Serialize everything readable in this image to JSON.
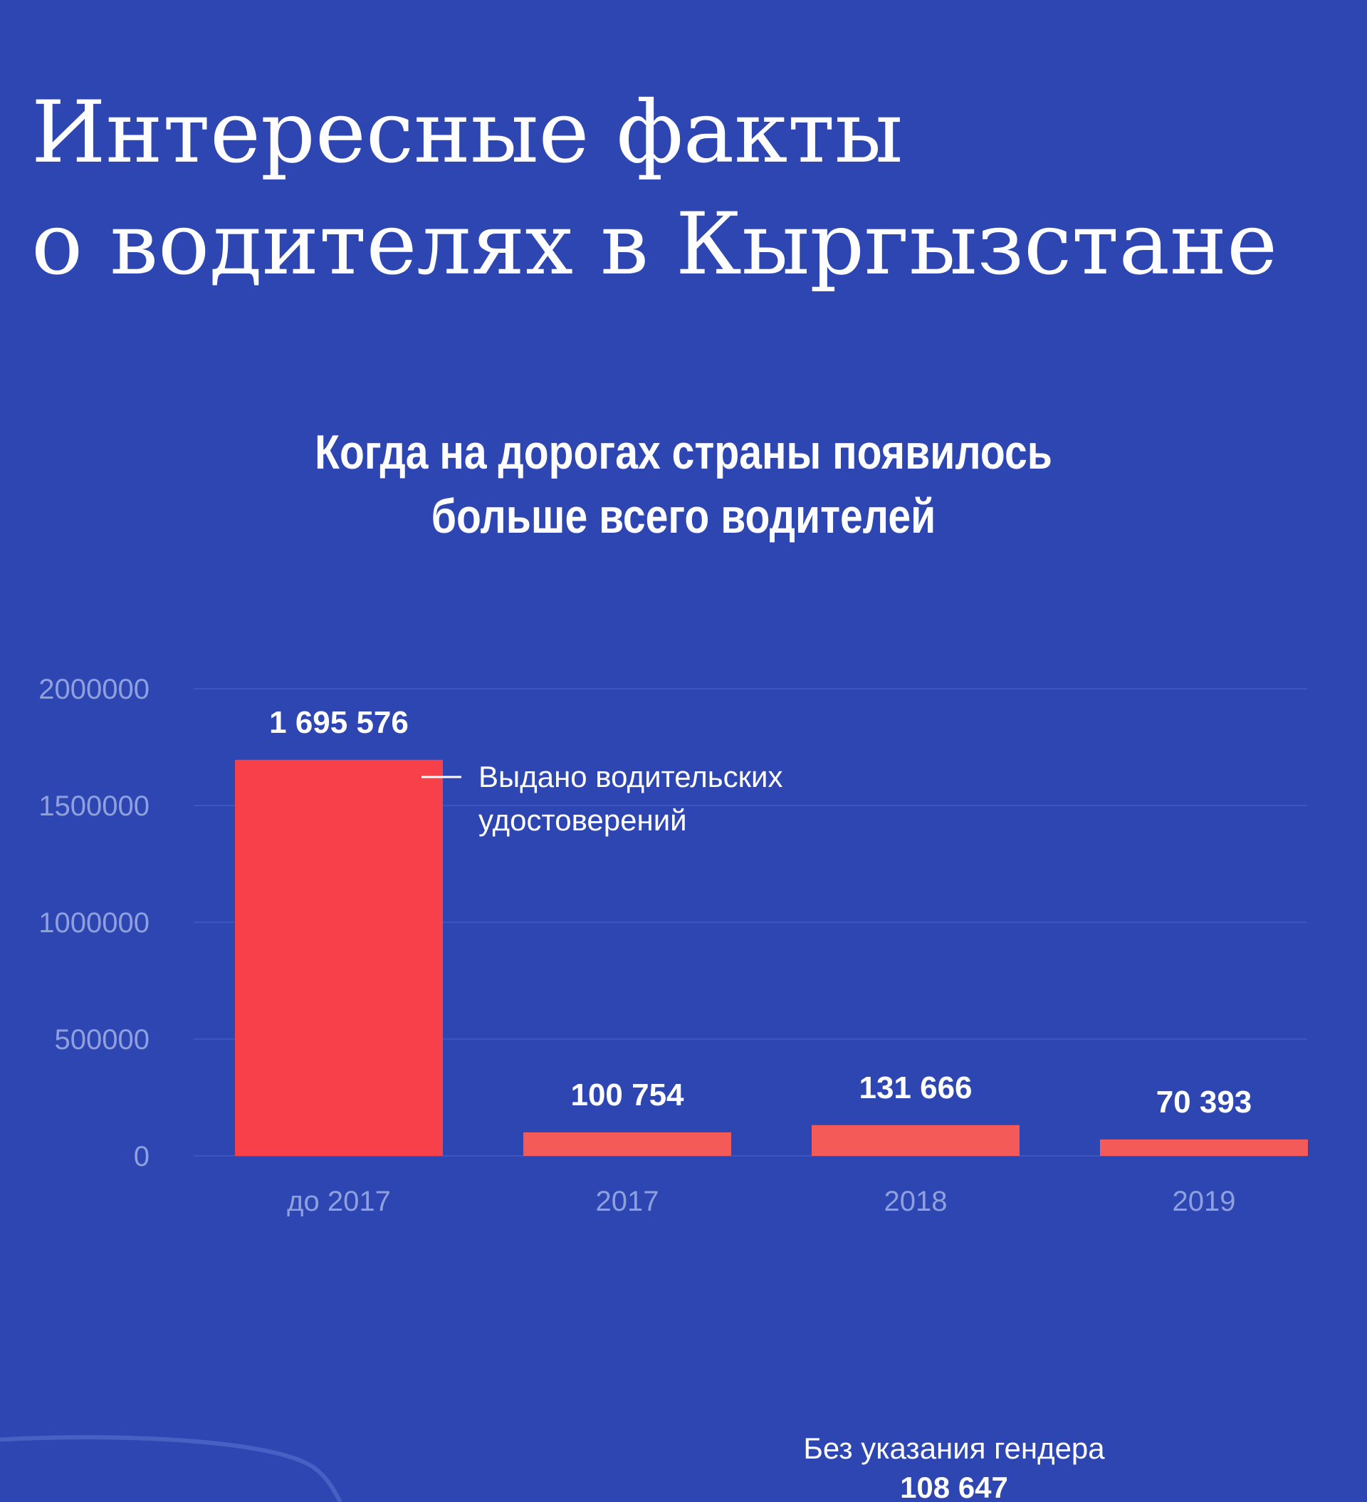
{
  "header": {
    "title_line1": "Интересные факты",
    "title_line2": "о водителях в Кыргызстане"
  },
  "chart_data": {
    "type": "bar",
    "title_line1": "Когда на дорогах страны появилось",
    "title_line2": "больше всего водителей",
    "categories": [
      "до 2017",
      "2017",
      "2018",
      "2019"
    ],
    "values": [
      1695576,
      100754,
      131666,
      70393
    ],
    "value_labels": [
      "1 695 576",
      "100 754",
      "131 666",
      "70 393"
    ],
    "yticks": [
      0,
      500000,
      1000000,
      1500000,
      2000000
    ],
    "ylim": [
      0,
      2000000
    ],
    "grid": true,
    "annotation_line1": "Выдано водительских",
    "annotation_line2": "удостоверений",
    "colors": {
      "background": "#2e46b1",
      "bar_primary": "#f7404a",
      "bar_secondary": "#f45a58",
      "grid": "#3c55bf",
      "tick_text": "#8fa0de",
      "text": "#ffffff"
    }
  },
  "footer": {
    "gender_label": "Без указания гендера",
    "gender_value": "108 647"
  }
}
